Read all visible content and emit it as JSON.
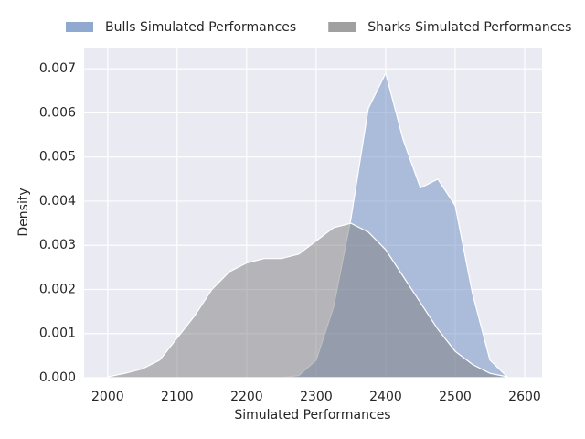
{
  "chart_data": {
    "type": "area",
    "xlabel": "Simulated Performances",
    "ylabel": "Density",
    "x": [
      2000,
      2025,
      2050,
      2075,
      2100,
      2125,
      2150,
      2175,
      2200,
      2225,
      2250,
      2275,
      2300,
      2325,
      2350,
      2375,
      2400,
      2425,
      2450,
      2475,
      2500,
      2525,
      2550,
      2575
    ],
    "series": [
      {
        "name": "Bulls Simulated Performances",
        "color": "#6b8cc2",
        "values": [
          0,
          0,
          0,
          0,
          0,
          0,
          0,
          0,
          0,
          0,
          0,
          5e-05,
          0.0004,
          0.0016,
          0.0036,
          0.0061,
          0.0069,
          0.0054,
          0.0043,
          0.0045,
          0.0039,
          0.0019,
          0.0004,
          2e-05
        ]
      },
      {
        "name": "Sharks Simulated Performances",
        "color": "#808080",
        "values": [
          2e-05,
          0.0001,
          0.0002,
          0.0004,
          0.0009,
          0.0014,
          0.002,
          0.0024,
          0.0026,
          0.0027,
          0.0027,
          0.0028,
          0.0031,
          0.0034,
          0.0035,
          0.0033,
          0.0029,
          0.0023,
          0.0017,
          0.0011,
          0.0006,
          0.0003,
          0.0001,
          2e-05
        ]
      }
    ],
    "xlim": [
      1966,
      2625
    ],
    "xticks": [
      2000,
      2100,
      2200,
      2300,
      2400,
      2500,
      2600
    ],
    "ylim": [
      0,
      0.00748
    ],
    "yticks": [
      {
        "value": 0,
        "label": "0.000"
      },
      {
        "value": 0.001,
        "label": "0.001"
      },
      {
        "value": 0.002,
        "label": "0.002"
      },
      {
        "value": 0.003,
        "label": "0.003"
      },
      {
        "value": 0.004,
        "label": "0.004"
      },
      {
        "value": 0.005,
        "label": "0.005"
      },
      {
        "value": 0.006,
        "label": "0.006"
      },
      {
        "value": 0.007,
        "label": "0.007"
      }
    ],
    "grid": true,
    "legend": "top"
  }
}
